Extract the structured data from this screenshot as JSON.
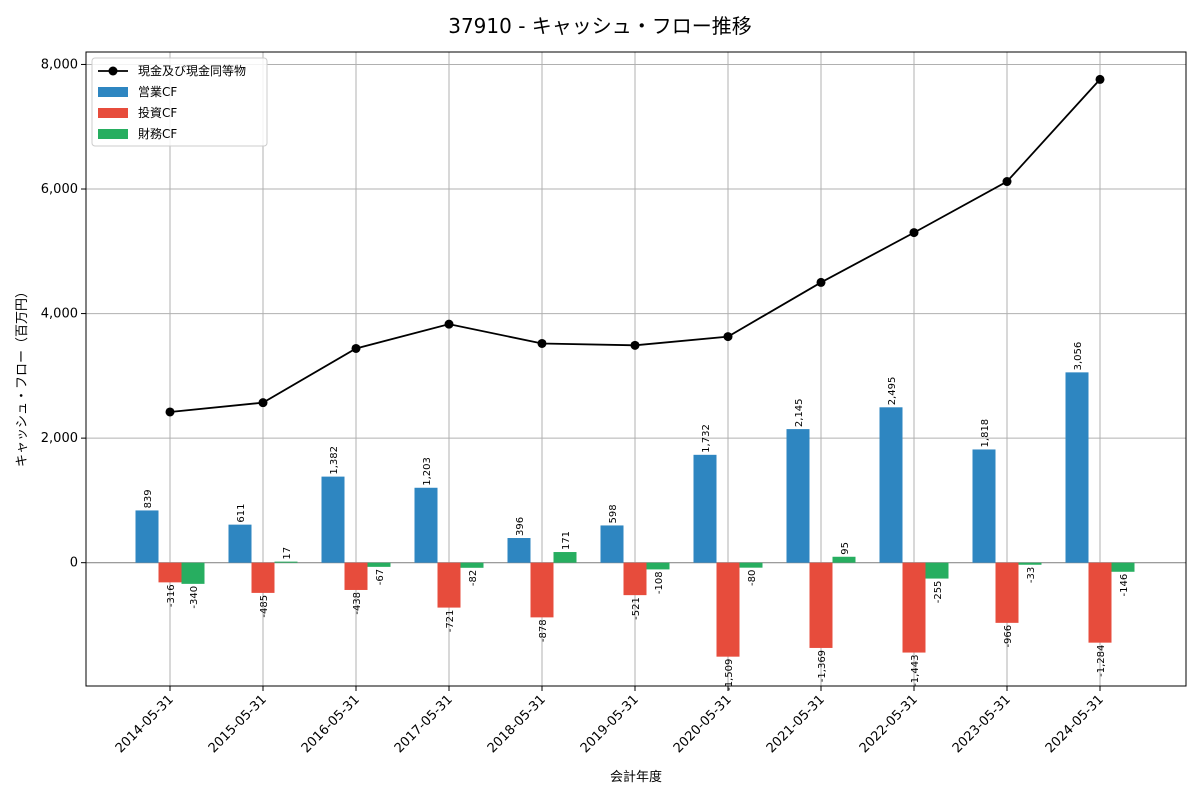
{
  "chart_data": {
    "type": "bar",
    "title": "37910 - キャッシュ・フロー推移",
    "xlabel": "会計年度",
    "ylabel": "キャッシュ・フロー（百万円）",
    "categories": [
      "2014-05-31",
      "2015-05-31",
      "2016-05-31",
      "2017-05-31",
      "2018-05-31",
      "2019-05-31",
      "2020-05-31",
      "2021-05-31",
      "2022-05-31",
      "2023-05-31",
      "2024-05-31"
    ],
    "ylim": [
      -1980,
      8200
    ],
    "yticks": [
      0,
      2000,
      4000,
      6000,
      8000
    ],
    "ytick_labels": [
      "0",
      "2,000",
      "4,000",
      "6,000",
      "8,000"
    ],
    "grid": true,
    "legend_position": "top-left",
    "series": [
      {
        "name": "営業CF",
        "kind": "bar",
        "color": "#2e86c1",
        "values": [
          839,
          611,
          1382,
          1203,
          396,
          598,
          1732,
          2145,
          2495,
          1818,
          3056
        ],
        "labels": [
          "839",
          "611",
          "1,382",
          "1,203",
          "396",
          "598",
          "1,732",
          "2,145",
          "2,495",
          "1,818",
          "3,056"
        ]
      },
      {
        "name": "投資CF",
        "kind": "bar",
        "color": "#e74c3c",
        "values": [
          -316,
          -485,
          -438,
          -721,
          -878,
          -521,
          -1509,
          -1369,
          -1443,
          -966,
          -1284
        ],
        "labels": [
          "-316",
          "-485",
          "-438",
          "-721",
          "-878",
          "-521",
          "-1,509",
          "-1,369",
          "-1,443",
          "-966",
          "-1,284"
        ]
      },
      {
        "name": "財務CF",
        "kind": "bar",
        "color": "#27ae60",
        "values": [
          -340,
          17,
          -67,
          -82,
          171,
          -108,
          -80,
          95,
          -255,
          -33,
          -146
        ],
        "labels": [
          "-340",
          "17",
          "-67",
          "-82",
          "171",
          "-108",
          "-80",
          "95",
          "-255",
          "-33",
          "-146"
        ]
      },
      {
        "name": "現金及び現金同等物",
        "kind": "line",
        "color": "#000000",
        "values": [
          2420,
          2570,
          3440,
          3830,
          3520,
          3490,
          3630,
          4500,
          5300,
          6120,
          7760
        ]
      }
    ]
  }
}
